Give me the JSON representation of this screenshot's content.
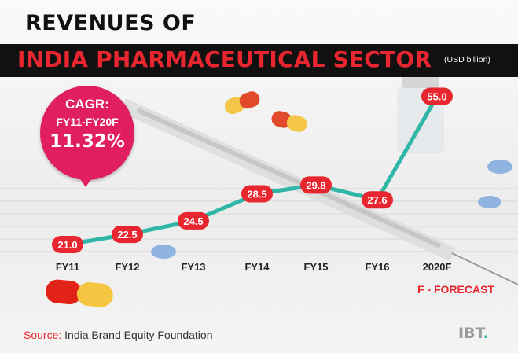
{
  "header": {
    "title_line1": "REVENUES OF",
    "title_line2": "INDIA PHARMACEUTICAL SECTOR",
    "unit": "(USD billion)"
  },
  "callout": {
    "line1": "CAGR:",
    "line2": "FY11-FY20F",
    "line3": "11.32%"
  },
  "footer": {
    "forecast_note": "F - FORECAST",
    "source_label": "Source:",
    "source_text": " India Brand Equity Foundation",
    "logo_text": "IBT",
    "logo_dot": "."
  },
  "colors": {
    "accent_red": "#e8262f",
    "line_teal": "#2fb6a6",
    "callout_pink": "#e11f5f",
    "title_bar": "#111111"
  },
  "chart_data": {
    "type": "line",
    "categories": [
      "FY11",
      "FY12",
      "FY13",
      "FY14",
      "FY15",
      "FY16",
      "2020F"
    ],
    "values": [
      21.0,
      22.5,
      24.5,
      28.5,
      29.8,
      27.6,
      55.0
    ],
    "value_labels": [
      "21.0",
      "22.5",
      "24.5",
      "28.5",
      "29.8",
      "27.6",
      "55.0"
    ],
    "title": "REVENUES OF INDIA PHARMACEUTICAL SECTOR",
    "ylabel": "(USD billion)",
    "grid": false,
    "legend": "none"
  }
}
